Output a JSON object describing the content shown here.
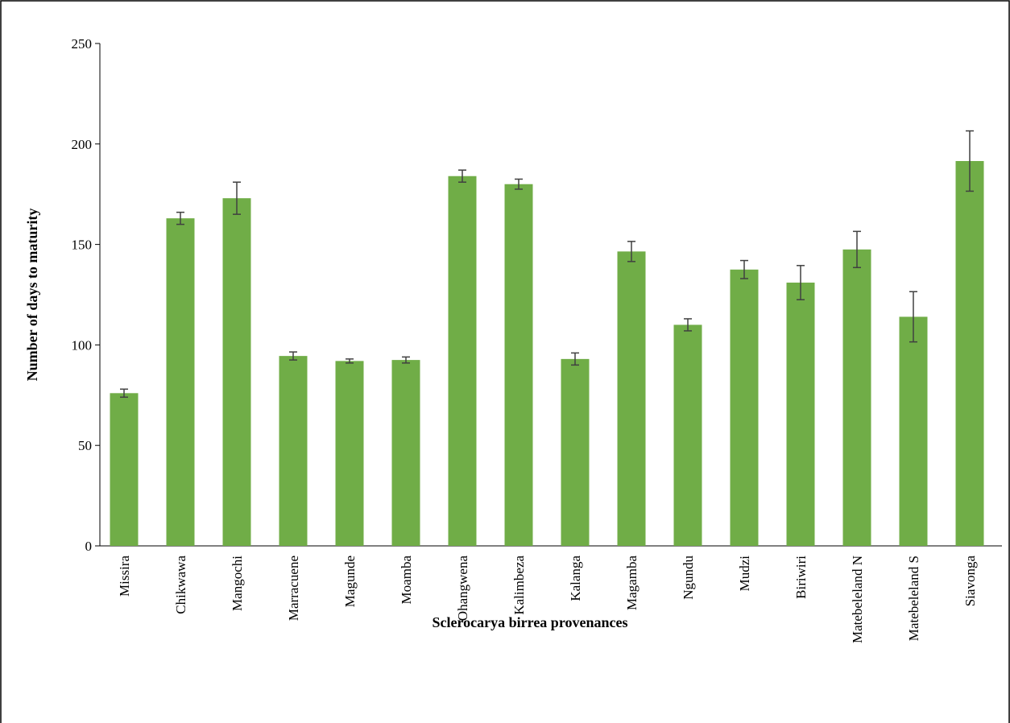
{
  "chart_data": {
    "type": "bar",
    "x_label": "Sclerocarya birrea provenances",
    "y_label": "Number of days to maturity",
    "categories": [
      "Missira",
      "Chikwawa",
      "Mangochi",
      "Marracuene",
      "Magunde",
      "Moamba",
      "Ohangwena",
      "Kalimbeza",
      "Kalanga",
      "Magamba",
      "Ngundu",
      "Mudzi",
      "Biriwiri",
      "Matebeleland N",
      "Matebeleland S",
      "Siavonga"
    ],
    "values": [
      76,
      163,
      173,
      94.5,
      92,
      92.5,
      184,
      180,
      93,
      146.5,
      110,
      137.5,
      131,
      147.5,
      114,
      191.5
    ],
    "errors": [
      2,
      3,
      8,
      2,
      1,
      1.5,
      3,
      2.5,
      3,
      5,
      3,
      4.5,
      8.5,
      9,
      12.5,
      15
    ],
    "color": "#70ad47",
    "ylim": [
      0,
      250
    ],
    "yticks": [
      0,
      50,
      100,
      150,
      200,
      250
    ]
  }
}
